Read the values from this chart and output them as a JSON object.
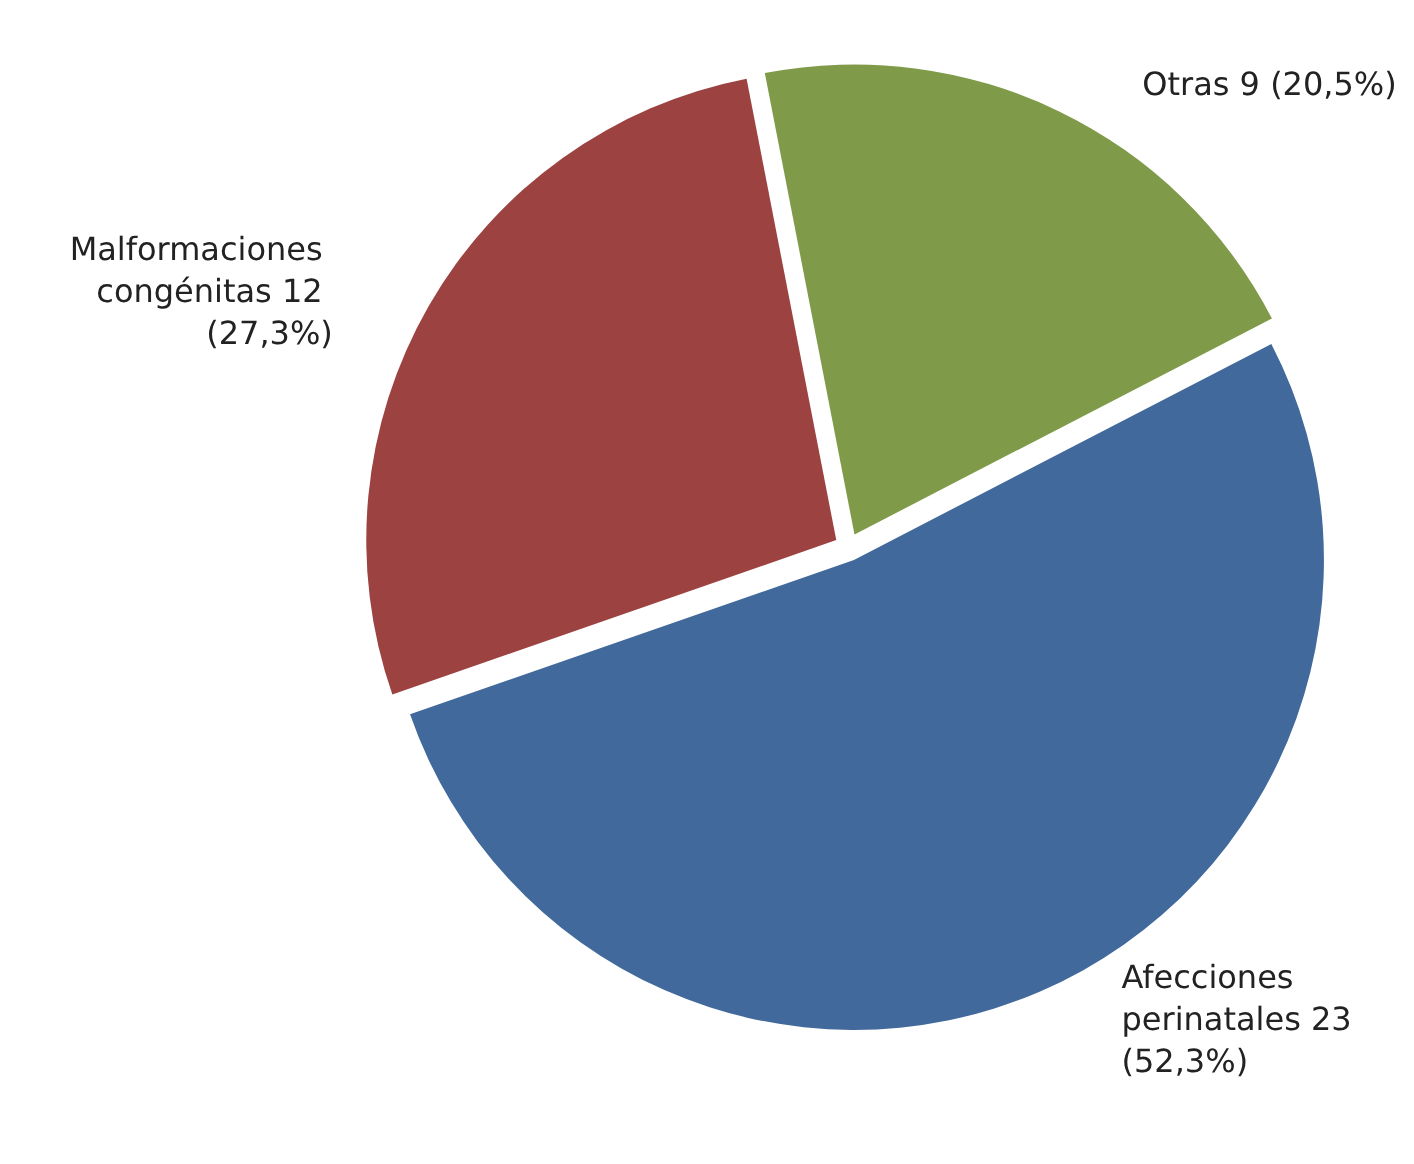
{
  "chart_data": {
    "type": "pie",
    "categories": [
      "Otras",
      "Afecciones perinatales",
      "Malformaciones congénitas"
    ],
    "values": [
      9,
      23,
      12
    ],
    "value_labels": [
      "9 (20,5%)",
      "23 (52,3%)",
      "12 (27,3%)"
    ],
    "colors": [
      "#7f9b4a",
      "#41699b",
      "#9c4241"
    ],
    "legend": false
  }
}
